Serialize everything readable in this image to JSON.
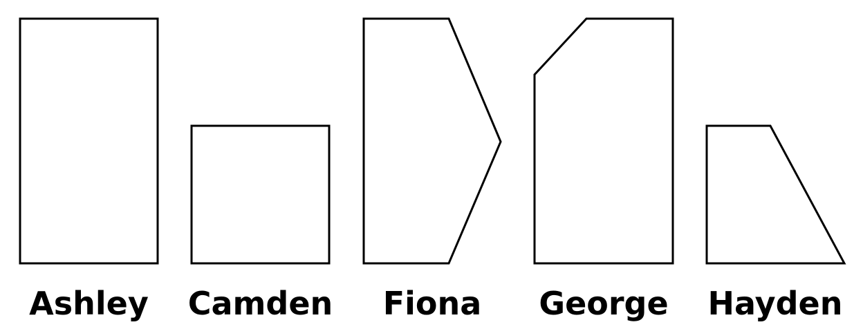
{
  "figures": [
    {
      "name": "Ashley",
      "shape": "rectangle"
    },
    {
      "name": "Camden",
      "shape": "square"
    },
    {
      "name": "Fiona",
      "shape": "pentagon"
    },
    {
      "name": "George",
      "shape": "pentagon"
    },
    {
      "name": "Hayden",
      "shape": "trapezoid"
    }
  ],
  "colors": {
    "stroke": "#000000",
    "fill": "#ffffff",
    "text": "#000000"
  }
}
